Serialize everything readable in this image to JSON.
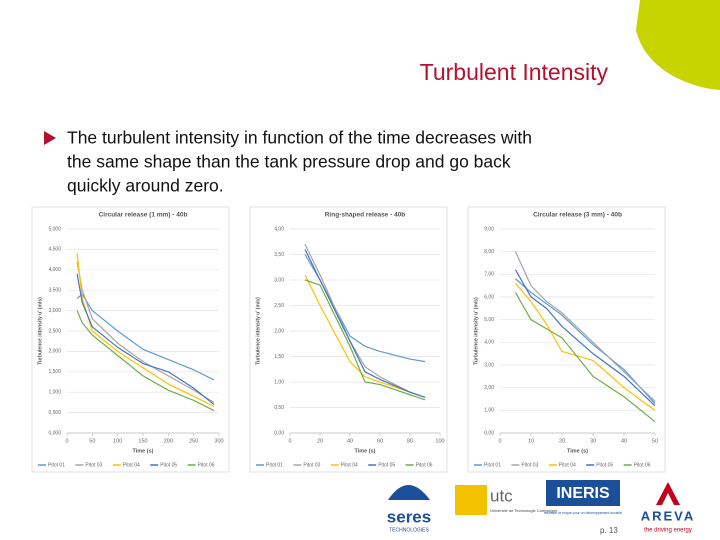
{
  "slide_title": "Turbulent Intensity",
  "bullet_lines": [
    "The turbulent intensity in function of the time decreases with",
    "the same shape than the tank pressure drop and go back",
    "quickly around zero."
  ],
  "logos": {
    "seres": "seres",
    "seres_sub": "TECHNOLOGIES",
    "utc": "utc",
    "utc_sub": "Université de Technologie Compiègne",
    "ineris": "INERIS",
    "ineris_sub": "maîtriser le risque pour un développement durable",
    "areva": "AREVA",
    "areva_sub": "the driving energy"
  },
  "page_number": "p. 13",
  "chart_data": [
    {
      "type": "line",
      "title": "Circular release (1 mm) - 40b",
      "x_label": "Time (s)",
      "y_label": "Turbulence intensity u' (m/s)",
      "x": [
        20,
        30,
        50,
        100,
        150,
        200,
        250,
        290
      ],
      "xlim": [
        0,
        300
      ],
      "xticks": [
        0,
        50,
        100,
        150,
        200,
        250,
        300
      ],
      "ylim": [
        0,
        5
      ],
      "yticks": [
        {
          "value": 0,
          "label": "0,000"
        },
        {
          "value": 0.5,
          "label": "0,500"
        },
        {
          "value": 1,
          "label": "1,000"
        },
        {
          "value": 1.5,
          "label": "1,500"
        },
        {
          "value": 2,
          "label": "2,000"
        },
        {
          "value": 2.5,
          "label": "2,500"
        },
        {
          "value": 3,
          "label": "3,000"
        },
        {
          "value": 3.5,
          "label": "3,500"
        },
        {
          "value": 4,
          "label": "4,000"
        },
        {
          "value": 4.5,
          "label": "4,500"
        },
        {
          "value": 5,
          "label": "5,000"
        }
      ],
      "grid": true,
      "legend": "bottom",
      "series": [
        {
          "name": "Pitot 01",
          "color": "#5b9bd5",
          "values": [
            3.3,
            3.4,
            3.0,
            2.5,
            2.05,
            1.8,
            1.55,
            1.3
          ]
        },
        {
          "name": "Pitot 03",
          "color": "#a5a5a5",
          "values": [
            4.2,
            3.5,
            2.8,
            2.2,
            1.75,
            1.4,
            1.05,
            0.75
          ]
        },
        {
          "name": "Pitot 04",
          "color": "#ffc000",
          "values": [
            4.4,
            3.3,
            2.5,
            2.0,
            1.6,
            1.2,
            0.9,
            0.65
          ]
        },
        {
          "name": "Pitot 05",
          "color": "#4472c4",
          "values": [
            3.9,
            3.2,
            2.6,
            2.1,
            1.7,
            1.5,
            1.1,
            0.7
          ]
        },
        {
          "name": "Pitot 06",
          "color": "#70ad47",
          "values": [
            3.0,
            2.7,
            2.4,
            1.9,
            1.4,
            1.05,
            0.8,
            0.55
          ]
        }
      ]
    },
    {
      "type": "line",
      "title": "Ring-shaped release - 40b",
      "x_label": "Time (s)",
      "y_label": "Turbulence intensity u' (m/s)",
      "x": [
        10,
        20,
        40,
        50,
        60,
        80,
        90
      ],
      "xlim": [
        0,
        100
      ],
      "xticks": [
        0,
        20,
        40,
        60,
        80,
        100
      ],
      "ylim": [
        0,
        4
      ],
      "yticks": [
        {
          "value": 0,
          "label": "0,00"
        },
        {
          "value": 0.5,
          "label": "0,50"
        },
        {
          "value": 1,
          "label": "1,00"
        },
        {
          "value": 1.5,
          "label": "1,50"
        },
        {
          "value": 2,
          "label": "2,00"
        },
        {
          "value": 2.5,
          "label": "2,50"
        },
        {
          "value": 3,
          "label": "3,00"
        },
        {
          "value": 3.5,
          "label": "3,50"
        },
        {
          "value": 4,
          "label": "4,00"
        }
      ],
      "grid": true,
      "legend": "bottom",
      "series": [
        {
          "name": "Pitot 01",
          "color": "#5b9bd5",
          "values": [
            3.5,
            3.0,
            1.9,
            1.7,
            1.6,
            1.45,
            1.4
          ]
        },
        {
          "name": "Pitot 03",
          "color": "#a5a5a5",
          "values": [
            3.7,
            3.1,
            1.8,
            1.3,
            1.1,
            0.8,
            0.7
          ]
        },
        {
          "name": "Pitot 04",
          "color": "#ffc000",
          "values": [
            3.1,
            2.5,
            1.4,
            1.1,
            1.0,
            0.8,
            0.7
          ]
        },
        {
          "name": "Pitot 05",
          "color": "#4472c4",
          "values": [
            3.6,
            3.0,
            1.8,
            1.2,
            1.05,
            0.8,
            0.7
          ]
        },
        {
          "name": "Pitot 06",
          "color": "#70ad47",
          "values": [
            3.0,
            2.9,
            1.7,
            1.0,
            0.95,
            0.75,
            0.65
          ]
        }
      ]
    },
    {
      "type": "line",
      "title": "Circular release (3 mm) - 40b",
      "x_label": "Time (s)",
      "y_label": "Turbulence intensity u' (m/s)",
      "x": [
        5,
        10,
        15,
        20,
        30,
        40,
        50
      ],
      "xlim": [
        0,
        50
      ],
      "xticks": [
        0,
        10,
        20,
        30,
        40,
        50
      ],
      "ylim": [
        0,
        9
      ],
      "yticks": [
        {
          "value": 0,
          "label": "0,00"
        },
        {
          "value": 1,
          "label": "1,00"
        },
        {
          "value": 2,
          "label": "2,00"
        },
        {
          "value": 3,
          "label": "3,00"
        },
        {
          "value": 4,
          "label": "4,00"
        },
        {
          "value": 5,
          "label": "5,00"
        },
        {
          "value": 6,
          "label": "6,00"
        },
        {
          "value": 7,
          "label": "7,00"
        },
        {
          "value": 8,
          "label": "8,00"
        },
        {
          "value": 9,
          "label": "9,00"
        }
      ],
      "grid": true,
      "legend": "bottom",
      "series": [
        {
          "name": "Pitot 01",
          "color": "#5b9bd5",
          "values": [
            6.8,
            6.2,
            5.7,
            5.2,
            3.9,
            2.8,
            1.3
          ]
        },
        {
          "name": "Pitot 03",
          "color": "#a5a5a5",
          "values": [
            8.0,
            6.5,
            5.8,
            5.3,
            4.0,
            2.7,
            1.4
          ]
        },
        {
          "name": "Pitot 04",
          "color": "#ffc000",
          "values": [
            6.6,
            5.8,
            4.8,
            3.6,
            3.2,
            2.0,
            1.0
          ]
        },
        {
          "name": "Pitot 05",
          "color": "#4472c4",
          "values": [
            7.2,
            6.0,
            5.5,
            4.7,
            3.5,
            2.5,
            1.2
          ]
        },
        {
          "name": "Pitot 06",
          "color": "#70ad47",
          "values": [
            6.2,
            5.0,
            4.6,
            4.2,
            2.5,
            1.6,
            0.5
          ]
        }
      ]
    }
  ]
}
